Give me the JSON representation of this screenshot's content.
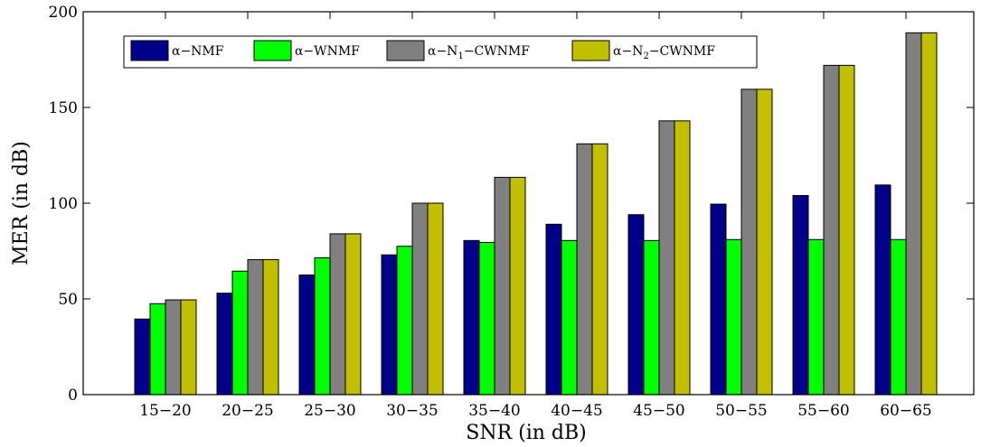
{
  "chart_data": {
    "type": "bar",
    "xlabel": "SNR (in dB)",
    "ylabel": "MER (in dB)",
    "ylim": [
      0,
      200
    ],
    "yticks": [
      0,
      50,
      100,
      150,
      200
    ],
    "grid": false,
    "legend_position": "top-left",
    "categories": [
      "15−20",
      "20−25",
      "25−30",
      "30−35",
      "35−40",
      "40−45",
      "45−50",
      "50−55",
      "55−60",
      "60−65"
    ],
    "series": [
      {
        "name": "α−NMF",
        "color": "#000088",
        "values": [
          39.5,
          53,
          62.5,
          73,
          80.5,
          89,
          94,
          99.5,
          104,
          109.5
        ]
      },
      {
        "name": "α−WNMF",
        "color": "#00ff00",
        "values": [
          47.5,
          64.5,
          71.5,
          77.5,
          79.5,
          80.5,
          80.5,
          81,
          81,
          81
        ]
      },
      {
        "name": "α−N1−CWNMF",
        "legend_parts": [
          "α−N",
          "1",
          "−CWNMF"
        ],
        "color": "#808080",
        "values": [
          49.5,
          70.5,
          84,
          100,
          113.5,
          131,
          143,
          159.5,
          172,
          189
        ]
      },
      {
        "name": "α−N2−CWNMF",
        "legend_parts": [
          "α−N",
          "2",
          "−CWNMF"
        ],
        "color": "#c0c000",
        "values": [
          49.5,
          70.5,
          84,
          100,
          113.5,
          131,
          143,
          159.5,
          172,
          189
        ]
      }
    ]
  }
}
